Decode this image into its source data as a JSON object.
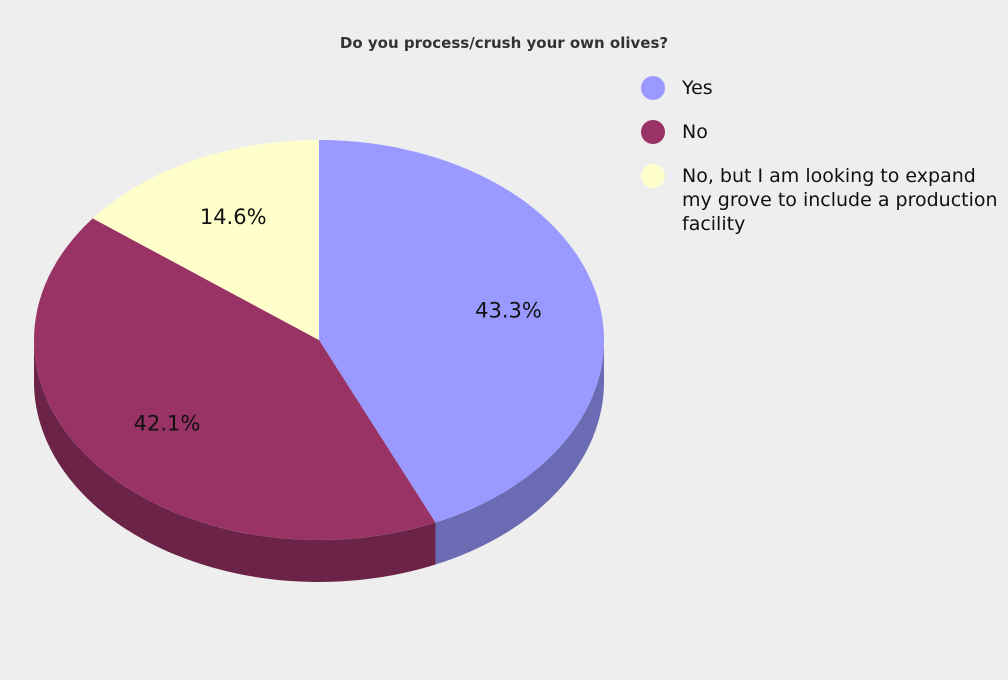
{
  "chart_data": {
    "type": "pie",
    "title": "Do you process/crush your own olives?",
    "categories": [
      "Yes",
      "No",
      "No, but I am looking to expand my grove to include a production facility"
    ],
    "values": [
      43.3,
      42.1,
      14.6
    ],
    "value_labels": [
      "43.3%",
      "42.1%",
      "14.6%"
    ],
    "colors": [
      "#9999ff",
      "#993366",
      "#ffffcc"
    ],
    "side_colors": [
      "#6b6bb3",
      "#6b2447",
      "#b3b38f"
    ],
    "legend_position": "top-right",
    "style": "3d"
  }
}
